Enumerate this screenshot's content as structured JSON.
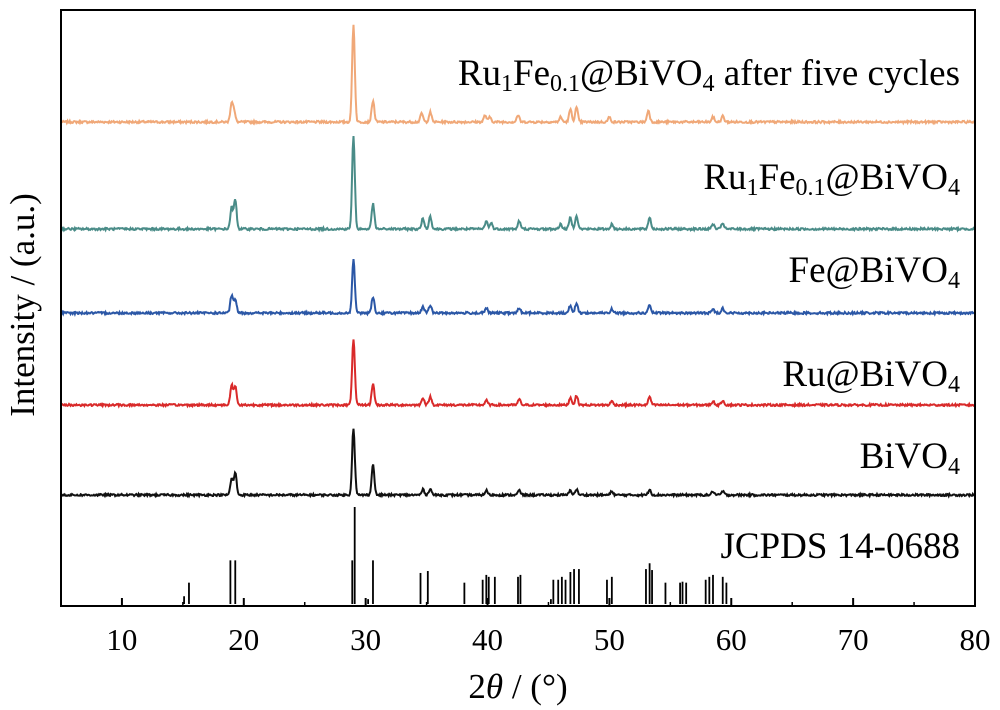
{
  "chart_data": {
    "type": "line",
    "xlabel_prefix": "2",
    "xlabel_symbol": "θ",
    "xlabel_suffix": " / (°)",
    "ylabel": "Intensity / (a.u.)",
    "xlim": [
      5,
      80
    ],
    "x_ticks": [
      10,
      20,
      30,
      40,
      50,
      60,
      70,
      80
    ],
    "series": [
      {
        "name": "Ru1Fe0.1@BiVO4 after five cycles",
        "label_parts": [
          [
            "Ru",
            ""
          ],
          [
            "1",
            "sub"
          ],
          [
            "Fe",
            ""
          ],
          [
            "0.1",
            "sub"
          ],
          [
            "@BiVO",
            ""
          ],
          [
            "4",
            "sub"
          ],
          [
            " after five cycles",
            ""
          ]
        ],
        "color": "#F0A878",
        "peaks": [
          [
            19.0,
            0.19
          ],
          [
            19.2,
            0.1
          ],
          [
            29.0,
            1.0
          ],
          [
            30.6,
            0.22
          ],
          [
            34.6,
            0.09
          ],
          [
            35.3,
            0.1
          ],
          [
            39.8,
            0.07
          ],
          [
            40.2,
            0.05
          ],
          [
            42.5,
            0.07
          ],
          [
            46.0,
            0.05
          ],
          [
            46.8,
            0.13
          ],
          [
            47.3,
            0.15
          ],
          [
            50.0,
            0.05
          ],
          [
            53.2,
            0.12
          ],
          [
            58.5,
            0.05
          ],
          [
            59.3,
            0.06
          ]
        ]
      },
      {
        "name": "Ru1Fe0.1@BiVO4",
        "label_parts": [
          [
            "Ru",
            ""
          ],
          [
            "1",
            "sub"
          ],
          [
            "Fe",
            ""
          ],
          [
            "0.1",
            "sub"
          ],
          [
            "@BiVO",
            ""
          ],
          [
            "4",
            "sub"
          ]
        ],
        "color": "#4A8C88",
        "peaks": [
          [
            19.0,
            0.22
          ],
          [
            19.3,
            0.3
          ],
          [
            29.0,
            0.95
          ],
          [
            30.6,
            0.26
          ],
          [
            34.7,
            0.11
          ],
          [
            35.3,
            0.13
          ],
          [
            39.9,
            0.08
          ],
          [
            40.3,
            0.06
          ],
          [
            42.6,
            0.08
          ],
          [
            46.0,
            0.05
          ],
          [
            46.8,
            0.12
          ],
          [
            47.3,
            0.14
          ],
          [
            50.2,
            0.05
          ],
          [
            53.3,
            0.12
          ],
          [
            58.5,
            0.05
          ],
          [
            59.3,
            0.06
          ]
        ]
      },
      {
        "name": "Fe@BiVO4",
        "label_parts": [
          [
            "Fe@BiVO",
            ""
          ],
          [
            "4",
            "sub"
          ]
        ],
        "color": "#2B57A6",
        "peaks": [
          [
            19.0,
            0.18
          ],
          [
            19.3,
            0.14
          ],
          [
            29.0,
            0.55
          ],
          [
            30.6,
            0.17
          ],
          [
            34.7,
            0.07
          ],
          [
            35.3,
            0.08
          ],
          [
            39.9,
            0.05
          ],
          [
            42.6,
            0.05
          ],
          [
            46.8,
            0.08
          ],
          [
            47.3,
            0.1
          ],
          [
            50.2,
            0.04
          ],
          [
            53.3,
            0.08
          ],
          [
            58.5,
            0.04
          ],
          [
            59.3,
            0.05
          ]
        ]
      },
      {
        "name": "Ru@BiVO4",
        "label_parts": [
          [
            "Ru@BiVO",
            ""
          ],
          [
            "4",
            "sub"
          ]
        ],
        "color": "#D92A2A",
        "peaks": [
          [
            19.0,
            0.22
          ],
          [
            19.3,
            0.2
          ],
          [
            29.0,
            0.72
          ],
          [
            30.6,
            0.23
          ],
          [
            34.7,
            0.08
          ],
          [
            35.3,
            0.09
          ],
          [
            39.9,
            0.05
          ],
          [
            42.6,
            0.06
          ],
          [
            46.8,
            0.08
          ],
          [
            47.3,
            0.1
          ],
          [
            50.2,
            0.04
          ],
          [
            53.3,
            0.09
          ],
          [
            58.5,
            0.04
          ],
          [
            59.3,
            0.05
          ]
        ]
      },
      {
        "name": "BiVO4",
        "label_parts": [
          [
            "BiVO",
            ""
          ],
          [
            "4",
            "sub"
          ]
        ],
        "color": "#111111",
        "peaks": [
          [
            19.0,
            0.17
          ],
          [
            19.3,
            0.24
          ],
          [
            29.0,
            0.73
          ],
          [
            30.6,
            0.33
          ],
          [
            34.7,
            0.06
          ],
          [
            35.3,
            0.07
          ],
          [
            39.9,
            0.05
          ],
          [
            42.6,
            0.05
          ],
          [
            46.8,
            0.05
          ],
          [
            47.3,
            0.06
          ],
          [
            50.2,
            0.04
          ],
          [
            53.3,
            0.06
          ],
          [
            58.5,
            0.04
          ],
          [
            59.3,
            0.04
          ]
        ]
      }
    ],
    "reference": {
      "name": "JCPDS 14-0688",
      "color": "#000000",
      "lines": [
        [
          15.1,
          0.08
        ],
        [
          15.5,
          0.22
        ],
        [
          18.9,
          0.45
        ],
        [
          19.3,
          0.45
        ],
        [
          28.9,
          0.45
        ],
        [
          29.1,
          1.0
        ],
        [
          30.2,
          0.05
        ],
        [
          30.6,
          0.45
        ],
        [
          34.5,
          0.32
        ],
        [
          35.1,
          0.34
        ],
        [
          38.1,
          0.22
        ],
        [
          39.6,
          0.25
        ],
        [
          39.9,
          0.3
        ],
        [
          40.1,
          0.28
        ],
        [
          40.6,
          0.28
        ],
        [
          42.5,
          0.28
        ],
        [
          42.7,
          0.3
        ],
        [
          45.2,
          0.05
        ],
        [
          45.4,
          0.25
        ],
        [
          45.8,
          0.25
        ],
        [
          46.1,
          0.28
        ],
        [
          46.4,
          0.25
        ],
        [
          46.8,
          0.33
        ],
        [
          47.1,
          0.36
        ],
        [
          47.5,
          0.36
        ],
        [
          49.8,
          0.25
        ],
        [
          50.2,
          0.28
        ],
        [
          53.0,
          0.36
        ],
        [
          53.3,
          0.42
        ],
        [
          53.5,
          0.35
        ],
        [
          54.6,
          0.22
        ],
        [
          55.8,
          0.22
        ],
        [
          56.0,
          0.23
        ],
        [
          56.3,
          0.22
        ],
        [
          57.9,
          0.25
        ],
        [
          58.2,
          0.28
        ],
        [
          58.5,
          0.3
        ],
        [
          59.3,
          0.28
        ],
        [
          59.6,
          0.22
        ]
      ]
    }
  }
}
